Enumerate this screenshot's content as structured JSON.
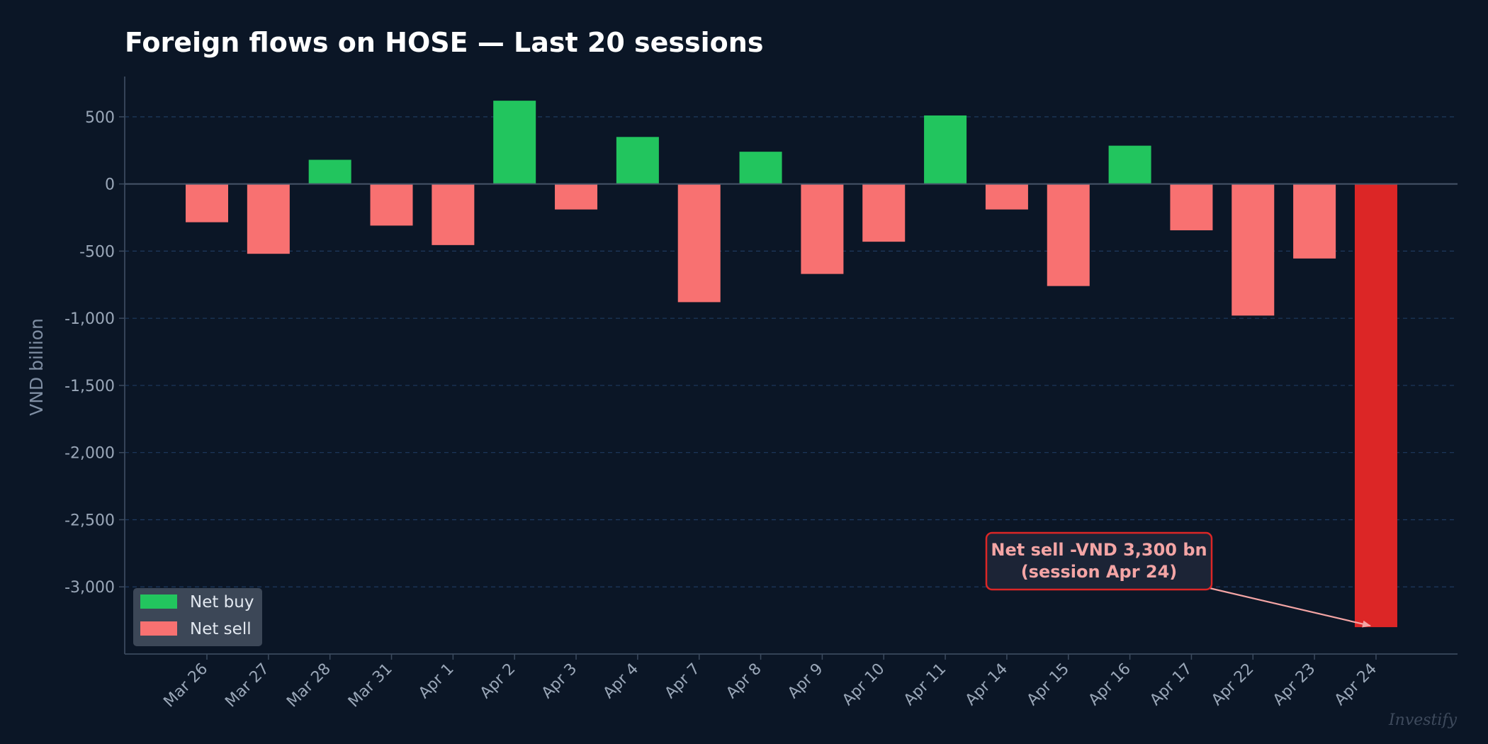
{
  "chart_data": {
    "type": "bar",
    "title": "Foreign flows on HOSE — Last 20 sessions",
    "xlabel": "",
    "ylabel": "VND billion",
    "categories": [
      "Mar 26",
      "Mar 27",
      "Mar 28",
      "Mar 31",
      "Apr 1",
      "Apr 2",
      "Apr 3",
      "Apr 4",
      "Apr 7",
      "Apr 8",
      "Apr 9",
      "Apr 10",
      "Apr 11",
      "Apr 14",
      "Apr 15",
      "Apr 16",
      "Apr 17",
      "Apr 22",
      "Apr 23",
      "Apr 24"
    ],
    "values": [
      -285,
      -520,
      180,
      -310,
      -455,
      620,
      -190,
      350,
      -880,
      240,
      -670,
      -430,
      510,
      -190,
      -760,
      285,
      -345,
      -980,
      -555,
      -3300
    ],
    "ylim": [
      -3500,
      800
    ],
    "yticks": [
      500,
      0,
      -500,
      -1000,
      -1500,
      -2000,
      -2500,
      -3000
    ],
    "ytick_labels": [
      "500",
      "0",
      "-500",
      "-1,000",
      "-1,500",
      "-2,000",
      "-2,500",
      "-3,000"
    ],
    "grid": true,
    "legend": {
      "placement": "lower-left",
      "entries": [
        {
          "label": "Net buy",
          "color": "#22c55e"
        },
        {
          "label": "Net sell",
          "color": "#f87171"
        }
      ]
    },
    "colors": {
      "net_buy": "#22c55e",
      "net_sell": "#f87171",
      "highlight": "#dc2626",
      "background": "#0b1626",
      "grid": "#1e3a5f",
      "axis": "#3b4a5e"
    },
    "highlight_category": "Apr 24",
    "annotation": {
      "lines": [
        "Net sell -VND 3,300 bn",
        "(session Apr 24)"
      ],
      "target_category": "Apr 24",
      "target_value": -3300
    }
  },
  "watermark": "Investify"
}
